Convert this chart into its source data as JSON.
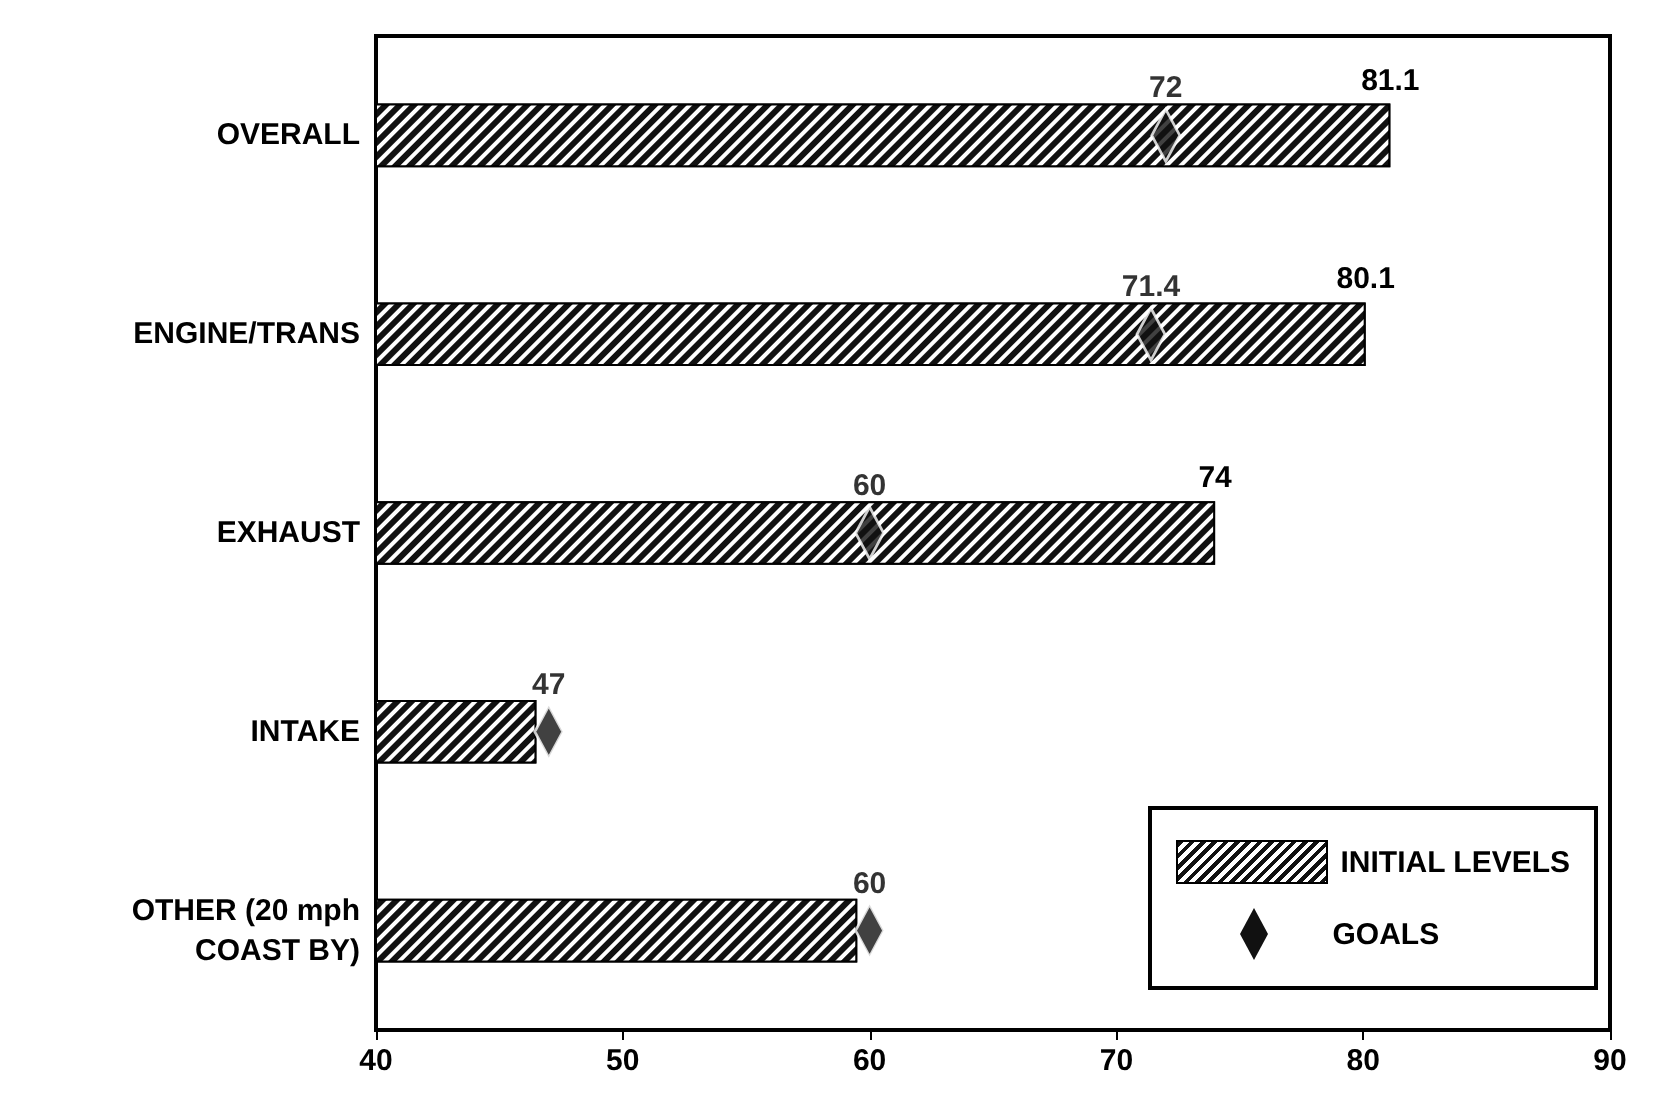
{
  "chart_data": {
    "type": "bar",
    "orientation": "horizontal",
    "categories": [
      "OVERALL",
      "ENGINE/TRANS",
      "EXHAUST",
      "INTAKE",
      "OTHER (20 mph\nCOAST BY)"
    ],
    "series": [
      {
        "name": "INITIAL LEVELS",
        "color": "#111111",
        "values": [
          81.1,
          80.1,
          74,
          46.5,
          59.5
        ],
        "value_labels": [
          "81.1",
          "80.1",
          "74",
          null,
          null
        ]
      },
      {
        "name": "GOALS",
        "type": "scatter",
        "marker": "diamond",
        "color": "#111111",
        "values": [
          72,
          71.4,
          60,
          47,
          60
        ],
        "value_labels": [
          "72",
          "71.4",
          "60",
          "47",
          "60"
        ]
      }
    ],
    "xlim": [
      40,
      90
    ],
    "xticks": [
      40,
      50,
      60,
      70,
      80,
      90
    ],
    "grid": false,
    "legend": "bottom right"
  }
}
